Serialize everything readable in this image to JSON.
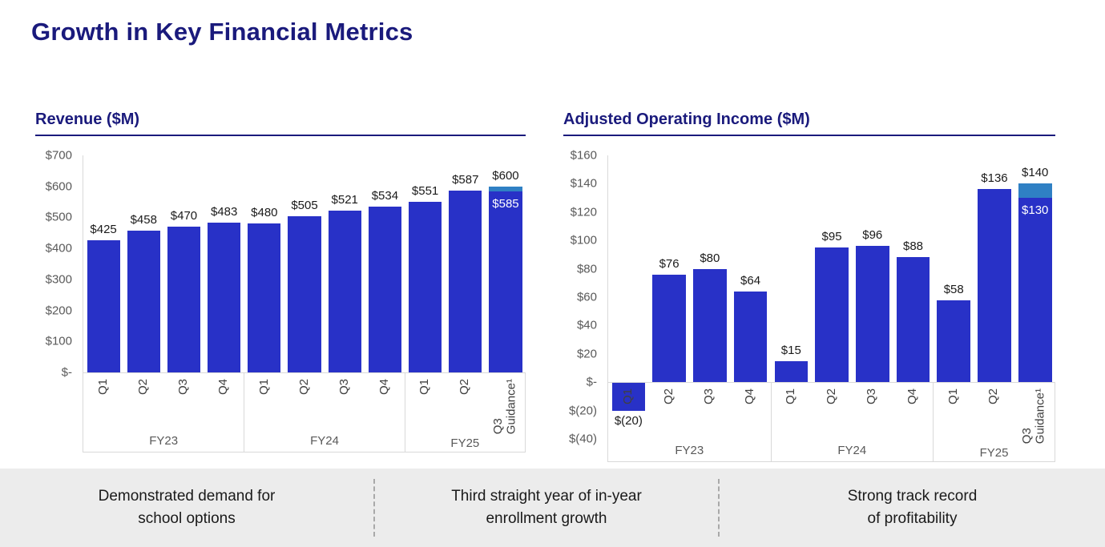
{
  "slide": {
    "title": "Growth in Key Financial Metrics"
  },
  "chart_data": [
    {
      "type": "bar",
      "title": "Revenue ($M)",
      "ylim": [
        0,
        700
      ],
      "grid": false,
      "yticks": [
        {
          "label": "$700",
          "value": 700
        },
        {
          "label": "$600",
          "value": 600
        },
        {
          "label": "$500",
          "value": 500
        },
        {
          "label": "$400",
          "value": 400
        },
        {
          "label": "$300",
          "value": 300
        },
        {
          "label": "$200",
          "value": 200
        },
        {
          "label": "$100",
          "value": 100
        },
        {
          "label": "$-",
          "value": 0
        }
      ],
      "groups": [
        {
          "label": "FY23",
          "count": 4
        },
        {
          "label": "FY24",
          "count": 4
        },
        {
          "label": "FY25",
          "count": 3
        }
      ],
      "bars": [
        {
          "cat": "Q1",
          "value": 425,
          "label": "$425"
        },
        {
          "cat": "Q2",
          "value": 458,
          "label": "$458"
        },
        {
          "cat": "Q3",
          "value": 470,
          "label": "$470"
        },
        {
          "cat": "Q4",
          "value": 483,
          "label": "$483"
        },
        {
          "cat": "Q1",
          "value": 480,
          "label": "$480"
        },
        {
          "cat": "Q2",
          "value": 505,
          "label": "$505"
        },
        {
          "cat": "Q3",
          "value": 521,
          "label": "$521"
        },
        {
          "cat": "Q4",
          "value": 534,
          "label": "$534"
        },
        {
          "cat": "Q1",
          "value": 551,
          "label": "$551"
        },
        {
          "cat": "Q2",
          "value": 587,
          "label": "$587"
        },
        {
          "cat": "Q3\nGuidance¹",
          "value": 585,
          "cap_value": 600,
          "label_inside": "$585",
          "label": "$600"
        }
      ]
    },
    {
      "type": "bar",
      "title": "Adjusted Operating Income ($M)",
      "ylim": [
        -40,
        160
      ],
      "grid": false,
      "yticks": [
        {
          "label": "$160",
          "value": 160
        },
        {
          "label": "$140",
          "value": 140
        },
        {
          "label": "$120",
          "value": 120
        },
        {
          "label": "$100",
          "value": 100
        },
        {
          "label": "$80",
          "value": 80
        },
        {
          "label": "$60",
          "value": 60
        },
        {
          "label": "$40",
          "value": 40
        },
        {
          "label": "$20",
          "value": 20
        },
        {
          "label": "$-",
          "value": 0
        },
        {
          "label": "$(20)",
          "value": -20
        },
        {
          "label": "$(40)",
          "value": -40
        }
      ],
      "groups": [
        {
          "label": "FY23",
          "count": 4
        },
        {
          "label": "FY24",
          "count": 4
        },
        {
          "label": "FY25",
          "count": 3
        }
      ],
      "bars": [
        {
          "cat": "Q1",
          "value": -20,
          "label": "$(20)"
        },
        {
          "cat": "Q2",
          "value": 76,
          "label": "$76"
        },
        {
          "cat": "Q3",
          "value": 80,
          "label": "$80"
        },
        {
          "cat": "Q4",
          "value": 64,
          "label": "$64"
        },
        {
          "cat": "Q1",
          "value": 15,
          "label": "$15"
        },
        {
          "cat": "Q2",
          "value": 95,
          "label": "$95"
        },
        {
          "cat": "Q3",
          "value": 96,
          "label": "$96"
        },
        {
          "cat": "Q4",
          "value": 88,
          "label": "$88"
        },
        {
          "cat": "Q1",
          "value": 58,
          "label": "$58"
        },
        {
          "cat": "Q2",
          "value": 136,
          "label": "$136"
        },
        {
          "cat": "Q3\nGuidance¹",
          "value": 130,
          "cap_value": 140,
          "label_inside": "$130",
          "label": "$140"
        }
      ]
    }
  ],
  "callouts": [
    {
      "text": "Demonstrated demand for\nschool options"
    },
    {
      "text": "Third straight year of in-year\nenrollment growth"
    },
    {
      "text": "Strong track record\nof profitability"
    }
  ],
  "colors": {
    "navy": "#1a1a7c",
    "bar_blue": "#2831c7",
    "cap_blue": "#2f80c4",
    "strip_bg": "#ececec",
    "axis_line": "#d9d9d9",
    "tick_text": "#595959",
    "label_text": "#1a1a1a",
    "qlabel_text": "#404040"
  }
}
